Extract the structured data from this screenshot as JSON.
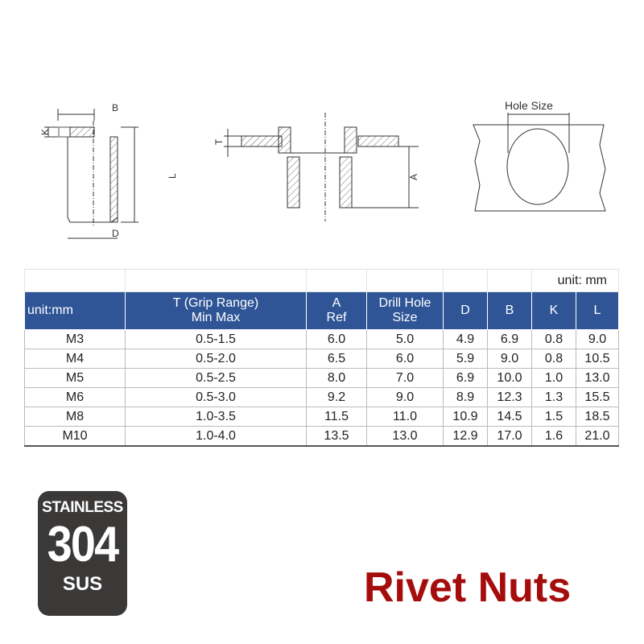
{
  "drawings": {
    "labels": {
      "b": "B",
      "k": "K",
      "l": "L",
      "d": "D",
      "t": "T",
      "a": "A",
      "hole": "Hole Size"
    }
  },
  "table": {
    "unit_note": "unit: mm",
    "headers": {
      "size": "unit:mm",
      "t1": "T (Grip Range)",
      "t2": "Min Max",
      "a1": "A",
      "a2": "Ref",
      "drill1": "Drill Hole",
      "drill2": "Size",
      "d": "D",
      "b": "B",
      "k": "K",
      "l": "L"
    },
    "rows": [
      [
        "M3",
        "0.5-1.5",
        "6.0",
        "5.0",
        "4.9",
        "6.9",
        "0.8",
        "9.0"
      ],
      [
        "M4",
        "0.5-2.0",
        "6.5",
        "6.0",
        "5.9",
        "9.0",
        "0.8",
        "10.5"
      ],
      [
        "M5",
        "0.5-2.5",
        "8.0",
        "7.0",
        "6.9",
        "10.0",
        "1.0",
        "13.0"
      ],
      [
        "M6",
        "0.5-3.0",
        "9.2",
        "9.0",
        "8.9",
        "12.3",
        "1.3",
        "15.5"
      ],
      [
        "M8",
        "1.0-3.5",
        "11.5",
        "11.0",
        "10.9",
        "14.5",
        "1.5",
        "18.5"
      ],
      [
        "M10",
        "1.0-4.0",
        "13.5",
        "13.0",
        "12.9",
        "17.0",
        "1.6",
        "21.0"
      ]
    ],
    "header_color": "#2f5597"
  },
  "badge": {
    "line1": "STAINLESS",
    "line2": "304",
    "line3": "SUS",
    "color": "#3b3838"
  },
  "title": {
    "text": "Rivet Nuts",
    "color": "#a50d0d"
  }
}
